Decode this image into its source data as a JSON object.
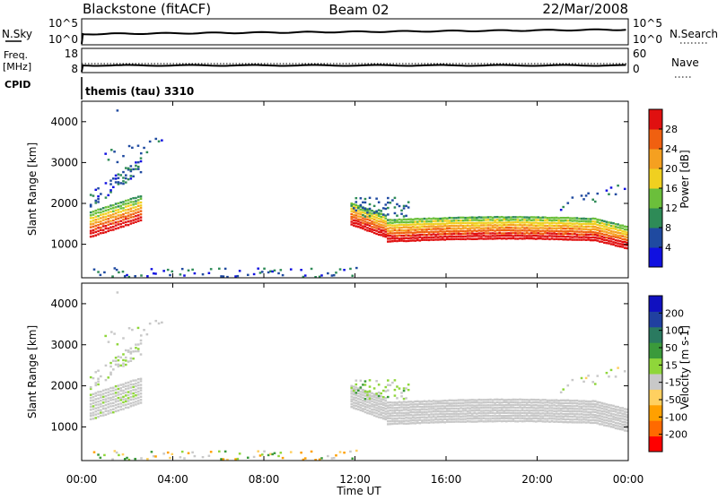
{
  "header": {
    "station": "Blackstone (fitACF)",
    "beam": "Beam 02",
    "date": "22/Mar/2008"
  },
  "sky_panel": {
    "left_label": "N.Sky",
    "left_ticks": [
      "10^5",
      "10^0"
    ],
    "right_label": "N.Search",
    "right_ticks": [
      "10^5",
      "10^0"
    ]
  },
  "freq_panel": {
    "left_label_line1": "Freq.",
    "left_label_line2": "[MHz]",
    "left_ticks": [
      "18",
      "8"
    ],
    "right_label": "Nave",
    "right_ticks": [
      "60",
      "0"
    ]
  },
  "cpid": {
    "label": "CPID",
    "value": "themis (tau) 3310"
  },
  "x_axis": {
    "label": "Time UT",
    "ticks": [
      "00:00",
      "04:00",
      "08:00",
      "12:00",
      "16:00",
      "20:00",
      "00:00"
    ]
  },
  "colors": {
    "power_scale": [
      "#1010e0",
      "#1f4aa0",
      "#2e8b57",
      "#6bbf3b",
      "#f0d020",
      "#f5a020",
      "#f06010",
      "#e01010"
    ],
    "velocity_scale": [
      "#ff0000",
      "#ff6a00",
      "#ffa000",
      "#ffd060",
      "#c8c8c8",
      "#8fd63a",
      "#3b9a3b",
      "#2a7a60",
      "#2040a0",
      "#1010c0"
    ]
  },
  "chart_data": [
    {
      "type": "heatmap",
      "title": "Power",
      "ylabel": "Slant Range [km]",
      "xlabel": "",
      "x_range_hours": [
        0,
        24
      ],
      "ylim": [
        180,
        4500
      ],
      "yticks": [
        "1000",
        "2000",
        "3000",
        "4000"
      ],
      "colorbar": {
        "label": "Power [dB]",
        "range": [
          0,
          32
        ],
        "ticks": [
          "4",
          "8",
          "12",
          "16",
          "20",
          "24",
          "28"
        ]
      },
      "features": [
        {
          "name": "morning band",
          "hours": [
            0.4,
            2.5
          ],
          "range_km": [
            1250,
            1750
          ],
          "power_db": 20
        },
        {
          "name": "afternoon band",
          "hours": [
            11.8,
            24
          ],
          "range_km": [
            950,
            1600
          ],
          "power_db": 24
        },
        {
          "name": "upper scatter",
          "hours": [
            1.0,
            3.5
          ],
          "range_km": [
            2000,
            4400
          ],
          "power_db": 6
        },
        {
          "name": "near-range scatter",
          "hours": [
            0.5,
            12.0
          ],
          "range_km": [
            200,
            450
          ],
          "power_db": 4
        }
      ]
    },
    {
      "type": "heatmap",
      "title": "Velocity",
      "ylabel": "Slant Range [km]",
      "xlabel": "Time UT",
      "x_range_hours": [
        0,
        24
      ],
      "ylim": [
        180,
        4500
      ],
      "yticks": [
        "1000",
        "2000",
        "3000",
        "4000"
      ],
      "colorbar": {
        "label": "Velocity [m s-1]",
        "range": [
          -250,
          250
        ],
        "ticks": [
          "200",
          "100",
          "50",
          "15",
          "-15",
          "-50",
          "-100",
          "-200"
        ]
      },
      "features": [
        {
          "name": "morning band",
          "hours": [
            0.4,
            2.5
          ],
          "range_km": [
            1250,
            1750
          ],
          "velocity_ms": 0
        },
        {
          "name": "afternoon band",
          "hours": [
            11.8,
            24
          ],
          "range_km": [
            950,
            1600
          ],
          "velocity_ms": 0
        }
      ]
    }
  ]
}
